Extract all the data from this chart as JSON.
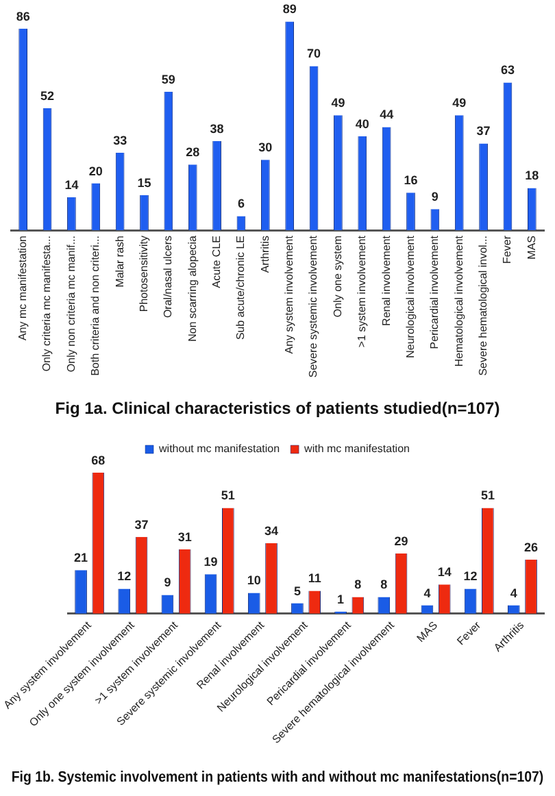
{
  "chart_data": [
    {
      "type": "bar",
      "title": "Fig 1a. Clinical characteristics of patients studied(n=107)",
      "categories": [
        "Any mc manifestation",
        "Only criteria mc manifesta...",
        "Only non criteria mc manif...",
        "Both criteria and non criteri...",
        "Malar rash",
        "Photosensitivity",
        "Oral/nasal ulcers",
        "Non scarring alopecia",
        "Acute CLE",
        "Sub acute/chronic LE",
        "Arthritis",
        "Any system involvement",
        "Severe systemic involvement",
        "Only one system",
        ">1 system involvement",
        "Renal involvement",
        "Neurological involvement",
        "Pericardial involvement",
        "Hematological involvement",
        "Severe hematological invol...",
        "Fever",
        "MAS"
      ],
      "series": [
        {
          "color": "#1f5ef0",
          "values": [
            86,
            52,
            14,
            20,
            33,
            15,
            59,
            28,
            38,
            6,
            30,
            89,
            70,
            49,
            40,
            44,
            16,
            9,
            49,
            37,
            63,
            18
          ]
        }
      ],
      "data_labels": true,
      "grid": false,
      "legend": false,
      "tick_labels": "x"
    },
    {
      "type": "bar",
      "title": "Fig 1b. Systemic involvement in patients with and without mc manifestations(n=107)",
      "categories": [
        "Any system involvement",
        "Only one system involvement",
        ">1 system involvement",
        "Severe systemic involvement",
        "Renal involvement",
        "Neurological involvement",
        "Pericardial involvement",
        "Severe hematological involvement",
        "MAS",
        "Fever",
        "Arthritis"
      ],
      "series": [
        {
          "name": "without mc manifestation",
          "color": "#1a5ce6",
          "values": [
            21,
            12,
            9,
            19,
            10,
            5,
            1,
            8,
            4,
            12,
            4
          ]
        },
        {
          "name": "with mc manifestation",
          "color": "#ee2a10",
          "values": [
            68,
            37,
            31,
            51,
            34,
            11,
            8,
            29,
            14,
            51,
            26
          ]
        }
      ],
      "data_labels": true,
      "grid": false,
      "legend": "top",
      "tick_labels": "x"
    }
  ]
}
